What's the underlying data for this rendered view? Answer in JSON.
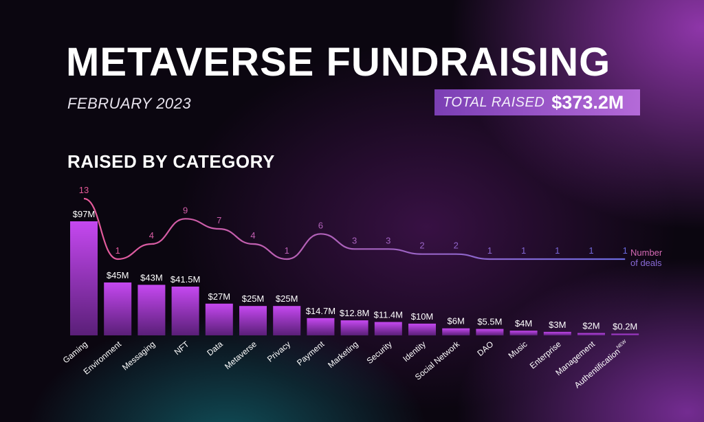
{
  "header": {
    "title": "METAVERSE FUNDRAISING",
    "subtitle": "FEBRUARY 2023",
    "total_label": "TOTAL RAISED",
    "total_value": "$373.2M"
  },
  "section": {
    "title": "RAISED BY CATEGORY"
  },
  "legend": {
    "line1": "Number",
    "line2": "of deals"
  },
  "colors": {
    "bar_top": "#c548f0",
    "bar_bottom": "#5a1f78",
    "line_start": "#e85a9a",
    "line_end": "#6a6ae0"
  },
  "chart_data": {
    "type": "bar",
    "categories": [
      "Gaming",
      "Environment",
      "Messaging",
      "NFT",
      "Data",
      "Metaverse",
      "Privacy",
      "Payment",
      "Marketing",
      "Security",
      "Identity",
      "Social Network",
      "DAO",
      "Music",
      "Enterprise",
      "Management",
      "Authentification"
    ],
    "new_badge": {
      "category": "Authentification",
      "text": "NEW"
    },
    "series": [
      {
        "values": [
          97,
          45,
          43,
          41.5,
          27,
          25,
          25,
          14.7,
          12.8,
          11.4,
          10,
          6,
          5.5,
          4,
          3,
          2,
          0.2
        ],
        "labels": [
          "$97M",
          "$45M",
          "$43M",
          "$41.5M",
          "$27M",
          "$25M",
          "$25M",
          "$14.7M",
          "$12.8M",
          "$11.4M",
          "$10M",
          "$6M",
          "$5.5M",
          "$4M",
          "$3M",
          "$2M",
          "$0.2M"
        ]
      },
      {
        "name": "Number of deals",
        "type": "line",
        "values": [
          13,
          1,
          4,
          9,
          7,
          4,
          1,
          6,
          3,
          3,
          2,
          2,
          1,
          1,
          1,
          1,
          1
        ]
      }
    ],
    "ylim": [
      0,
      97
    ],
    "grid": false
  }
}
